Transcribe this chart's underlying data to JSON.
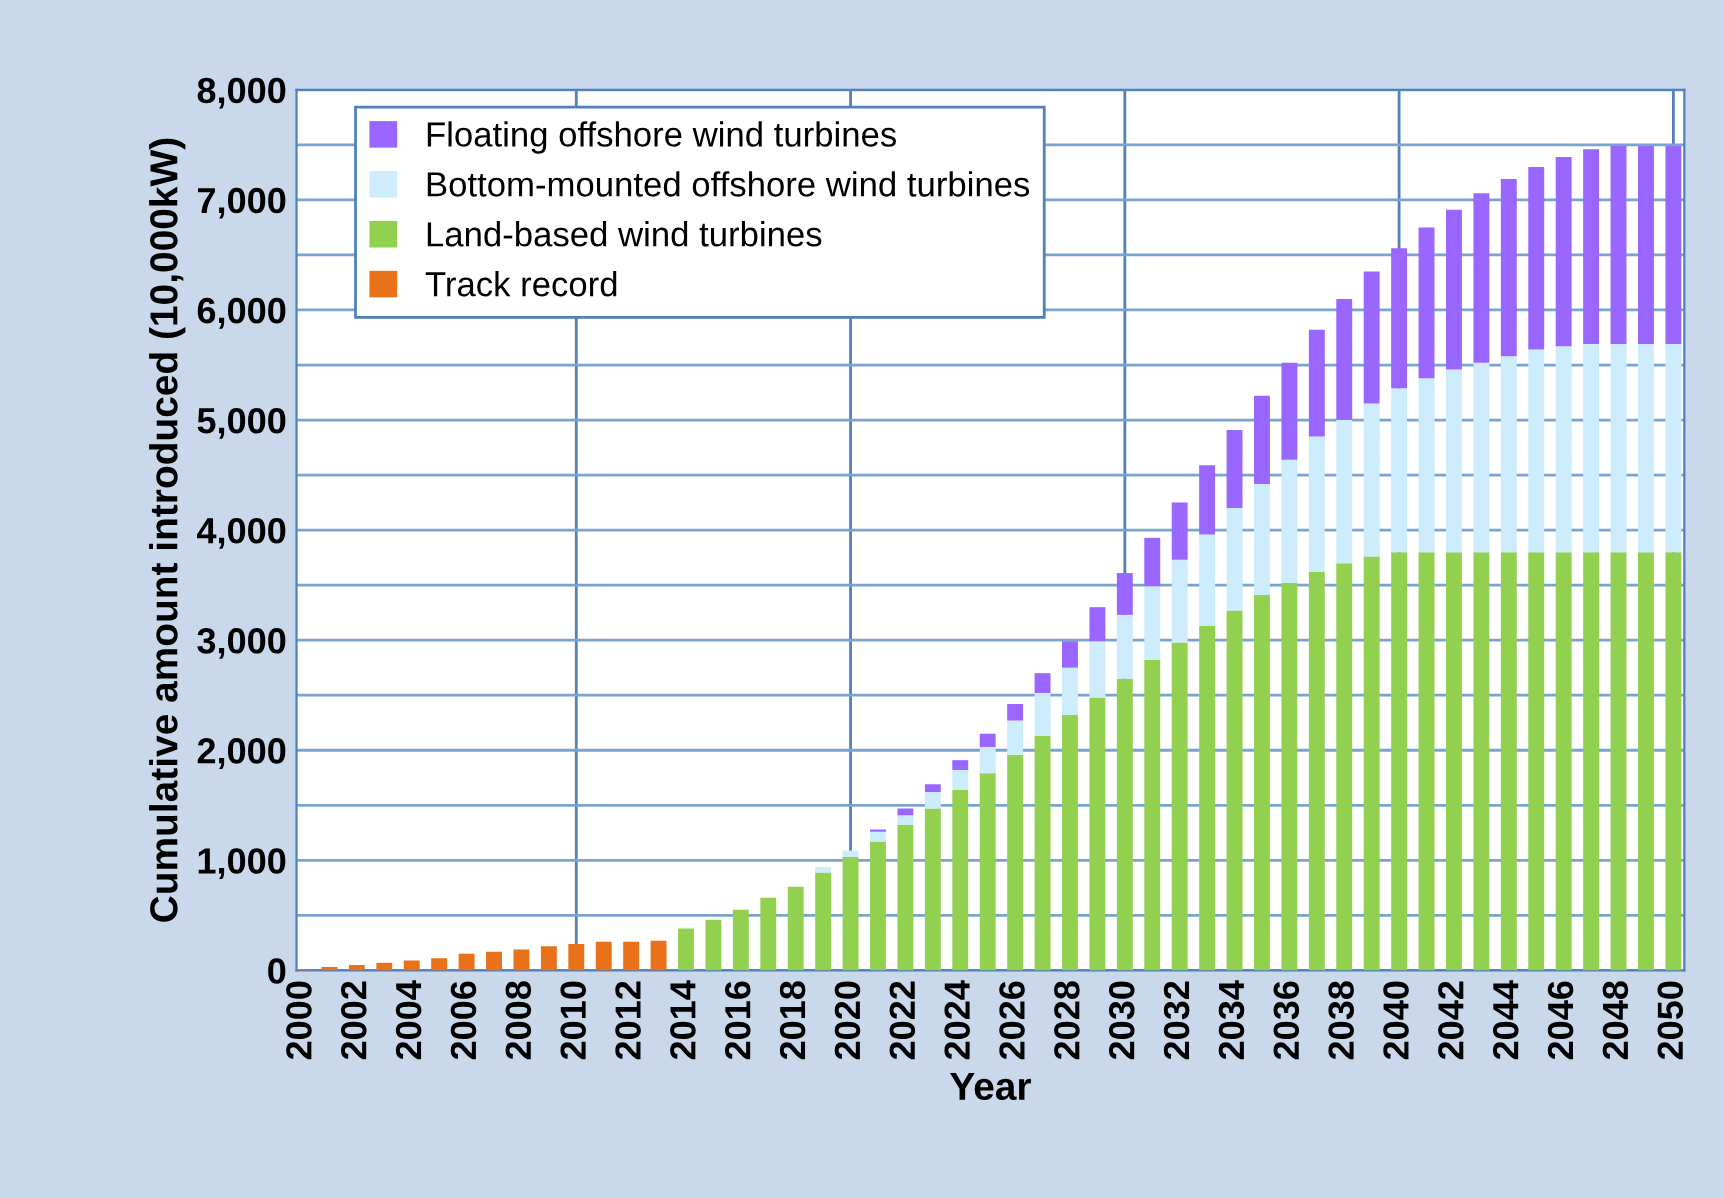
{
  "chart_data": {
    "type": "bar",
    "stacked": true,
    "xlabel": "Year",
    "ylabel": "Cumulative amount introduced (10,000kW)",
    "x": [
      2000,
      2001,
      2002,
      2003,
      2004,
      2005,
      2006,
      2007,
      2008,
      2009,
      2010,
      2011,
      2012,
      2013,
      2014,
      2015,
      2016,
      2017,
      2018,
      2019,
      2020,
      2021,
      2022,
      2023,
      2024,
      2025,
      2026,
      2027,
      2028,
      2029,
      2030,
      2031,
      2032,
      2033,
      2034,
      2035,
      2036,
      2037,
      2038,
      2039,
      2040,
      2041,
      2042,
      2043,
      2044,
      2045,
      2046,
      2047,
      2048,
      2049,
      2050
    ],
    "series": [
      {
        "name": "Track record",
        "color": "#e8711a",
        "values": [
          10,
          30,
          50,
          70,
          90,
          110,
          150,
          170,
          190,
          220,
          240,
          260,
          260,
          270,
          null,
          null,
          null,
          null,
          null,
          null,
          null,
          null,
          null,
          null,
          null,
          null,
          null,
          null,
          null,
          null,
          null,
          null,
          null,
          null,
          null,
          null,
          null,
          null,
          null,
          null,
          null,
          null,
          null,
          null,
          null,
          null,
          null,
          null,
          null,
          null,
          null
        ]
      },
      {
        "name": "Land-based wind turbines",
        "color": "#92d050",
        "values": [
          null,
          null,
          null,
          null,
          null,
          null,
          null,
          null,
          null,
          null,
          null,
          null,
          null,
          null,
          380,
          460,
          550,
          660,
          760,
          890,
          1030,
          1170,
          1320,
          1470,
          1640,
          1790,
          1960,
          2130,
          2320,
          2480,
          2650,
          2820,
          2980,
          3130,
          3270,
          3410,
          3520,
          3620,
          3700,
          3760,
          3800,
          3800,
          3800,
          3800,
          3800,
          3800,
          3800,
          3800,
          3800,
          3800,
          3800
        ]
      },
      {
        "name": "Bottom-mounted offshore wind turbines",
        "color": "#cdecfc",
        "values": [
          null,
          null,
          null,
          null,
          null,
          null,
          null,
          null,
          null,
          null,
          null,
          null,
          null,
          null,
          null,
          null,
          null,
          null,
          null,
          50,
          60,
          90,
          90,
          150,
          180,
          240,
          310,
          390,
          430,
          510,
          580,
          670,
          750,
          830,
          930,
          1010,
          1120,
          1230,
          1300,
          1390,
          1490,
          1580,
          1660,
          1720,
          1780,
          1840,
          1870,
          1890,
          1890,
          1890,
          1890
        ]
      },
      {
        "name": "Floating offshore wind turbines",
        "color": "#9966ff",
        "values": [
          null,
          null,
          null,
          null,
          null,
          null,
          null,
          null,
          null,
          null,
          null,
          null,
          null,
          null,
          null,
          null,
          null,
          null,
          null,
          null,
          null,
          20,
          60,
          70,
          90,
          120,
          150,
          180,
          240,
          310,
          380,
          440,
          520,
          630,
          710,
          800,
          880,
          970,
          1100,
          1200,
          1270,
          1370,
          1450,
          1540,
          1610,
          1660,
          1720,
          1770,
          1800,
          1800,
          1800
        ]
      }
    ],
    "xlim": [
      1999.8,
      2050.4
    ],
    "xticks": [
      2000,
      2002,
      2004,
      2006,
      2008,
      2010,
      2012,
      2014,
      2016,
      2018,
      2020,
      2022,
      2024,
      2026,
      2028,
      2030,
      2032,
      2034,
      2036,
      2038,
      2040,
      2042,
      2044,
      2046,
      2048,
      2050
    ],
    "ylim": [
      0,
      8000
    ],
    "yticks": [
      {
        "value": 0,
        "label": "0"
      },
      {
        "value": 500,
        "label": null
      },
      {
        "value": 1000,
        "label": "1,000"
      },
      {
        "value": 1500,
        "label": null
      },
      {
        "value": 2000,
        "label": "2,000"
      },
      {
        "value": 2500,
        "label": null
      },
      {
        "value": 3000,
        "label": "3,000"
      },
      {
        "value": 3500,
        "label": null
      },
      {
        "value": 4000,
        "label": "4,000"
      },
      {
        "value": 4500,
        "label": null
      },
      {
        "value": 5000,
        "label": "5,000"
      },
      {
        "value": 5500,
        "label": null
      },
      {
        "value": 6000,
        "label": "6,000"
      },
      {
        "value": 6500,
        "label": null
      },
      {
        "value": 7000,
        "label": "7,000"
      },
      {
        "value": 7500,
        "label": null
      },
      {
        "value": 8000,
        "label": "8,000"
      }
    ],
    "grid": "y",
    "ref_lines": [
      {
        "axis": "x",
        "value": 2010,
        "label": null,
        "color": "#4f81bd"
      },
      {
        "axis": "x",
        "value": 2020,
        "label": null,
        "color": "#4f81bd"
      },
      {
        "axis": "x",
        "value": 2030,
        "label": null,
        "color": "#4f81bd"
      },
      {
        "axis": "x",
        "value": 2040,
        "label": null,
        "color": "#4f81bd"
      },
      {
        "axis": "x",
        "value": 2050,
        "label": null,
        "color": "#4f81bd"
      }
    ],
    "legend": "top left"
  }
}
